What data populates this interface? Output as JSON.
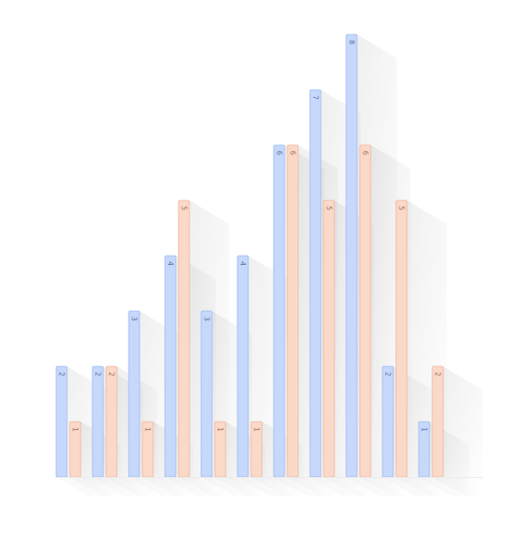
{
  "chart_data": {
    "type": "bar",
    "categories": [
      "",
      "",
      "",
      "",
      "",
      "",
      "",
      "",
      "",
      "",
      "",
      ""
    ],
    "series": [
      {
        "values": [
          2,
          2,
          3,
          4,
          3,
          4,
          6,
          7,
          8,
          2,
          1,
          0
        ]
      },
      {
        "values": [
          1,
          2,
          1,
          5,
          1,
          1,
          6,
          5,
          6,
          5,
          2,
          0
        ]
      }
    ],
    "colors": {
      "series_0_fill": "#c6d8fb",
      "series_0_stroke": "#9db9ee",
      "series_0_label": "#5a6f9e",
      "series_1_fill": "#fbd9c8",
      "series_1_stroke": "#eeb49c",
      "series_1_label": "#a26a55"
    },
    "ylim": [
      0,
      8
    ],
    "grid": false,
    "legend": "none",
    "data_labels": "inside-top-rotated",
    "title": "",
    "xlabel": "",
    "ylabel": ""
  }
}
